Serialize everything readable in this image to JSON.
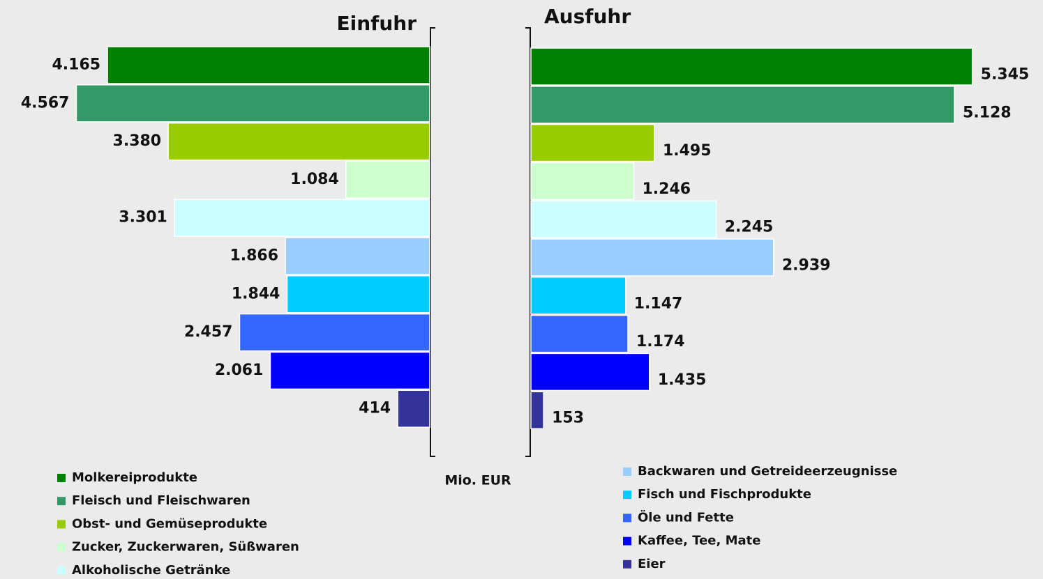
{
  "chart_data": {
    "type": "bar",
    "unit": "Mio. EUR",
    "categories": [
      "Molkereiprodukte",
      "Fleisch und Fleischwaren",
      "Obst- und Gemüseprodukte",
      "Zucker, Zuckerwaren, Süßwaren",
      "Alkoholische Getränke",
      "Backwaren und Getreideerzeugnisse",
      "Fisch und Fischprodukte",
      "Öle und Fette",
      "Kaffee, Tee, Mate",
      "Eier"
    ],
    "colors": [
      "#008000",
      "#339966",
      "#99cc00",
      "#ccffcc",
      "#ccffff",
      "#99ccff",
      "#00ccff",
      "#3366ff",
      "#0000ff",
      "#333399"
    ],
    "xlim": [
      0,
      5500
    ],
    "series": [
      {
        "name": "Einfuhr",
        "values": [
          4165,
          4567,
          3380,
          1084,
          3301,
          1866,
          1844,
          2457,
          2061,
          414
        ],
        "value_labels": [
          "4.165",
          "4.567",
          "3.380",
          "1.084",
          "3.301",
          "1.866",
          "1.844",
          "2.457",
          "2.061",
          "414"
        ]
      },
      {
        "name": "Ausfuhr",
        "values": [
          5345,
          5128,
          1495,
          1246,
          2245,
          2939,
          1147,
          1174,
          1435,
          153
        ],
        "value_labels": [
          "5.345",
          "5.128",
          "1.495",
          "1.246",
          "2.245",
          "2.939",
          "1.147",
          "1.174",
          "1.435",
          "153"
        ]
      }
    ]
  }
}
